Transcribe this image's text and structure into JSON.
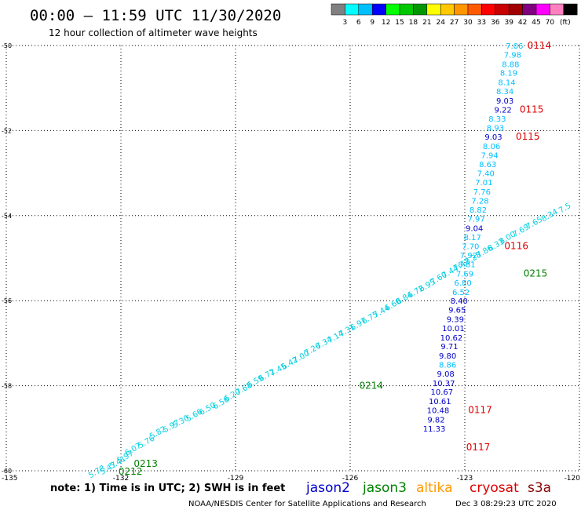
{
  "header": {
    "title": "00:00 – 11:59 UTC 11/30/2020",
    "subtitle": "12 hour collection of altimeter wave heights"
  },
  "colorbar": {
    "colors": [
      "#808080",
      "#00ffff",
      "#00bfff",
      "#0000ff",
      "#00ff00",
      "#00c800",
      "#009600",
      "#ffff00",
      "#ffc800",
      "#ff9600",
      "#ff5a00",
      "#ff0000",
      "#c80000",
      "#a00000",
      "#800080",
      "#ff00ff",
      "#ff80c0",
      "#000000"
    ],
    "labels": [
      "3",
      "6",
      "9",
      "12",
      "15",
      "18",
      "21",
      "24",
      "27",
      "30",
      "33",
      "36",
      "39",
      "42",
      "45",
      "70"
    ],
    "unit": "(ft)"
  },
  "footer": {
    "note": "note: 1) Time is in UTC; 2) SWH is in feet",
    "credit": "NOAA/NESDIS Center for Satellite Applications and Research",
    "timestamp": "Dec  3 08:29:23 UTC 2020"
  },
  "legend": [
    {
      "name": "jason2",
      "color": "#0000cc"
    },
    {
      "name": "jason3",
      "color": "#008000"
    },
    {
      "name": "altika",
      "color": "#ff9900"
    },
    {
      "name": "cryosat",
      "color": "#dd0000"
    },
    {
      "name": "s3a",
      "color": "#880000"
    }
  ],
  "chart_data": {
    "type": "scatter",
    "xlim": [
      -135,
      -120
    ],
    "ylim": [
      -60,
      -50
    ],
    "x_ticks": [
      "-135",
      "-132",
      "-129",
      "-126",
      "-123",
      "-120"
    ],
    "y_ticks": [
      "-50",
      "-52",
      "-54",
      "-56",
      "-58",
      "-60"
    ],
    "grid": true,
    "series": [
      {
        "name": "jason3",
        "color": "#00cfe0",
        "points": [
          [
            -132.6,
            -60.0,
            "5.78"
          ],
          [
            -132.3,
            -59.92,
            "5.47"
          ],
          [
            -132.05,
            -59.78,
            "5.41"
          ],
          [
            -131.85,
            -59.65,
            "5.97"
          ],
          [
            -131.65,
            -59.47,
            "6.07"
          ],
          [
            -131.3,
            -59.3,
            "5.76"
          ],
          [
            -131.0,
            -59.08,
            "5.82"
          ],
          [
            -130.65,
            -58.93,
            "5.97"
          ],
          [
            -130.4,
            -58.82,
            "5.30"
          ],
          [
            -130.05,
            -58.67,
            "5.66"
          ],
          [
            -129.7,
            -58.52,
            "6.50"
          ],
          [
            -129.35,
            -58.38,
            "6.56"
          ],
          [
            -129.05,
            -58.2,
            "6.20"
          ],
          [
            -128.75,
            -58.05,
            "7.68"
          ],
          [
            -128.45,
            -57.88,
            "6.59"
          ],
          [
            -128.15,
            -57.73,
            "6.72"
          ],
          [
            -127.85,
            -57.6,
            "7.45"
          ],
          [
            -127.55,
            -57.45,
            "6.42"
          ],
          [
            -127.25,
            -57.3,
            "7.00"
          ],
          [
            -126.95,
            -57.12,
            "7.26"
          ],
          [
            -126.65,
            -56.97,
            "7.34"
          ],
          [
            -126.35,
            -56.83,
            "7.14"
          ],
          [
            -126.05,
            -56.68,
            "7.31"
          ],
          [
            -125.75,
            -56.53,
            "6.97"
          ],
          [
            -125.45,
            -56.38,
            "6.75"
          ],
          [
            -125.15,
            -56.23,
            "7.44"
          ],
          [
            -124.85,
            -56.07,
            "6.60"
          ],
          [
            -124.55,
            -55.92,
            "6.84"
          ],
          [
            -124.25,
            -55.77,
            "6.72"
          ],
          [
            -123.95,
            -55.62,
            "6.95"
          ],
          [
            -123.65,
            -55.45,
            "7.60"
          ],
          [
            -123.35,
            -55.3,
            "7.44"
          ],
          [
            -123.05,
            -55.13,
            "7.42"
          ],
          [
            -122.75,
            -54.98,
            "8.28"
          ],
          [
            -122.45,
            -54.82,
            "7.86"
          ],
          [
            -122.15,
            -54.67,
            "8.33"
          ],
          [
            -121.85,
            -54.5,
            "8.00"
          ],
          [
            -121.5,
            -54.33,
            "7.69"
          ],
          [
            -121.15,
            -54.15,
            "7.65"
          ],
          [
            -120.75,
            -53.97,
            "8.34"
          ],
          [
            -120.35,
            -53.8,
            "7.5"
          ]
        ]
      },
      {
        "name": "altika",
        "color": "#00bfff",
        "points": [
          [
            -121.7,
            -50.0,
            "7.06"
          ],
          [
            -121.75,
            -50.21,
            "7.98"
          ],
          [
            -121.8,
            -50.43,
            "8.88"
          ],
          [
            -121.85,
            -50.64,
            "8.19"
          ],
          [
            -121.9,
            -50.86,
            "8.14"
          ],
          [
            -121.95,
            -51.07,
            "8.34"
          ],
          [
            -122.15,
            -51.72,
            "8.33"
          ],
          [
            -122.2,
            -51.93,
            "8.93"
          ],
          [
            -122.3,
            -52.36,
            "8.06"
          ],
          [
            -122.35,
            -52.57,
            "7.94"
          ],
          [
            -122.4,
            -52.79,
            "8.63"
          ],
          [
            -122.45,
            -53.0,
            "7.40"
          ],
          [
            -122.5,
            -53.21,
            "7.01"
          ],
          [
            -122.55,
            -53.43,
            "7.76"
          ],
          [
            -122.6,
            -53.64,
            "7.28"
          ],
          [
            -122.65,
            -53.86,
            "8.82"
          ],
          [
            -122.7,
            -54.07,
            "7.97"
          ],
          [
            -122.8,
            -54.5,
            "8.17"
          ],
          [
            -122.9,
            -54.93,
            "7.92"
          ],
          [
            -122.95,
            -55.14,
            "8.81"
          ],
          [
            -123.0,
            -55.36,
            "7.69"
          ],
          [
            -123.05,
            -55.57,
            "6.80"
          ],
          [
            -123.1,
            -55.79,
            "6.52"
          ]
        ]
      },
      {
        "name": "jason2",
        "color": "#0000cc",
        "points": [
          [
            -121.95,
            -51.29,
            "9.03"
          ],
          [
            -122.0,
            -51.5,
            "9.22"
          ],
          [
            -122.25,
            -52.14,
            "9.03"
          ],
          [
            -122.75,
            -54.29,
            "9.04"
          ],
          [
            -123.15,
            -56.0,
            "8.40"
          ],
          [
            -123.2,
            -56.21,
            "9.65"
          ],
          [
            -123.25,
            -56.43,
            "9.39"
          ],
          [
            -123.3,
            -56.64,
            "10.01"
          ],
          [
            -123.35,
            -56.86,
            "10.62"
          ],
          [
            -123.4,
            -57.07,
            "9.71"
          ],
          [
            -123.45,
            -57.29,
            "9.80"
          ],
          [
            -123.5,
            -57.71,
            "9.08"
          ],
          [
            -123.55,
            -57.93,
            "10.37"
          ],
          [
            -123.6,
            -58.14,
            "10.67"
          ],
          [
            -123.65,
            -58.36,
            "10.61"
          ],
          [
            -123.7,
            -58.57,
            "10.48"
          ],
          [
            -123.75,
            -58.79,
            "9.82"
          ],
          [
            -123.8,
            -59.0,
            "11.33"
          ]
        ]
      },
      {
        "name": "s3a",
        "color": "#00bfff",
        "points": [
          [
            -122.85,
            -54.71,
            "7.70"
          ],
          [
            -123.45,
            -57.5,
            "8.86"
          ]
        ]
      }
    ],
    "time_labels": [
      {
        "x": -121.05,
        "y": -50.0,
        "text": "0114",
        "color": "#dd0000"
      },
      {
        "x": -121.25,
        "y": -51.5,
        "text": "0115",
        "color": "#dd0000"
      },
      {
        "x": -121.35,
        "y": -52.14,
        "text": "0115",
        "color": "#dd0000"
      },
      {
        "x": -121.65,
        "y": -54.71,
        "text": "0116",
        "color": "#dd0000"
      },
      {
        "x": -121.15,
        "y": -55.36,
        "text": "0215",
        "color": "#008000"
      },
      {
        "x": -125.45,
        "y": -58.0,
        "text": "0214",
        "color": "#008000"
      },
      {
        "x": -122.6,
        "y": -58.57,
        "text": "0117",
        "color": "#dd0000"
      },
      {
        "x": -122.65,
        "y": -59.45,
        "text": "0117",
        "color": "#dd0000"
      },
      {
        "x": -131.35,
        "y": -59.83,
        "text": "0213",
        "color": "#008000"
      },
      {
        "x": -131.75,
        "y": -60.02,
        "text": "0212",
        "color": "#008000"
      }
    ]
  }
}
